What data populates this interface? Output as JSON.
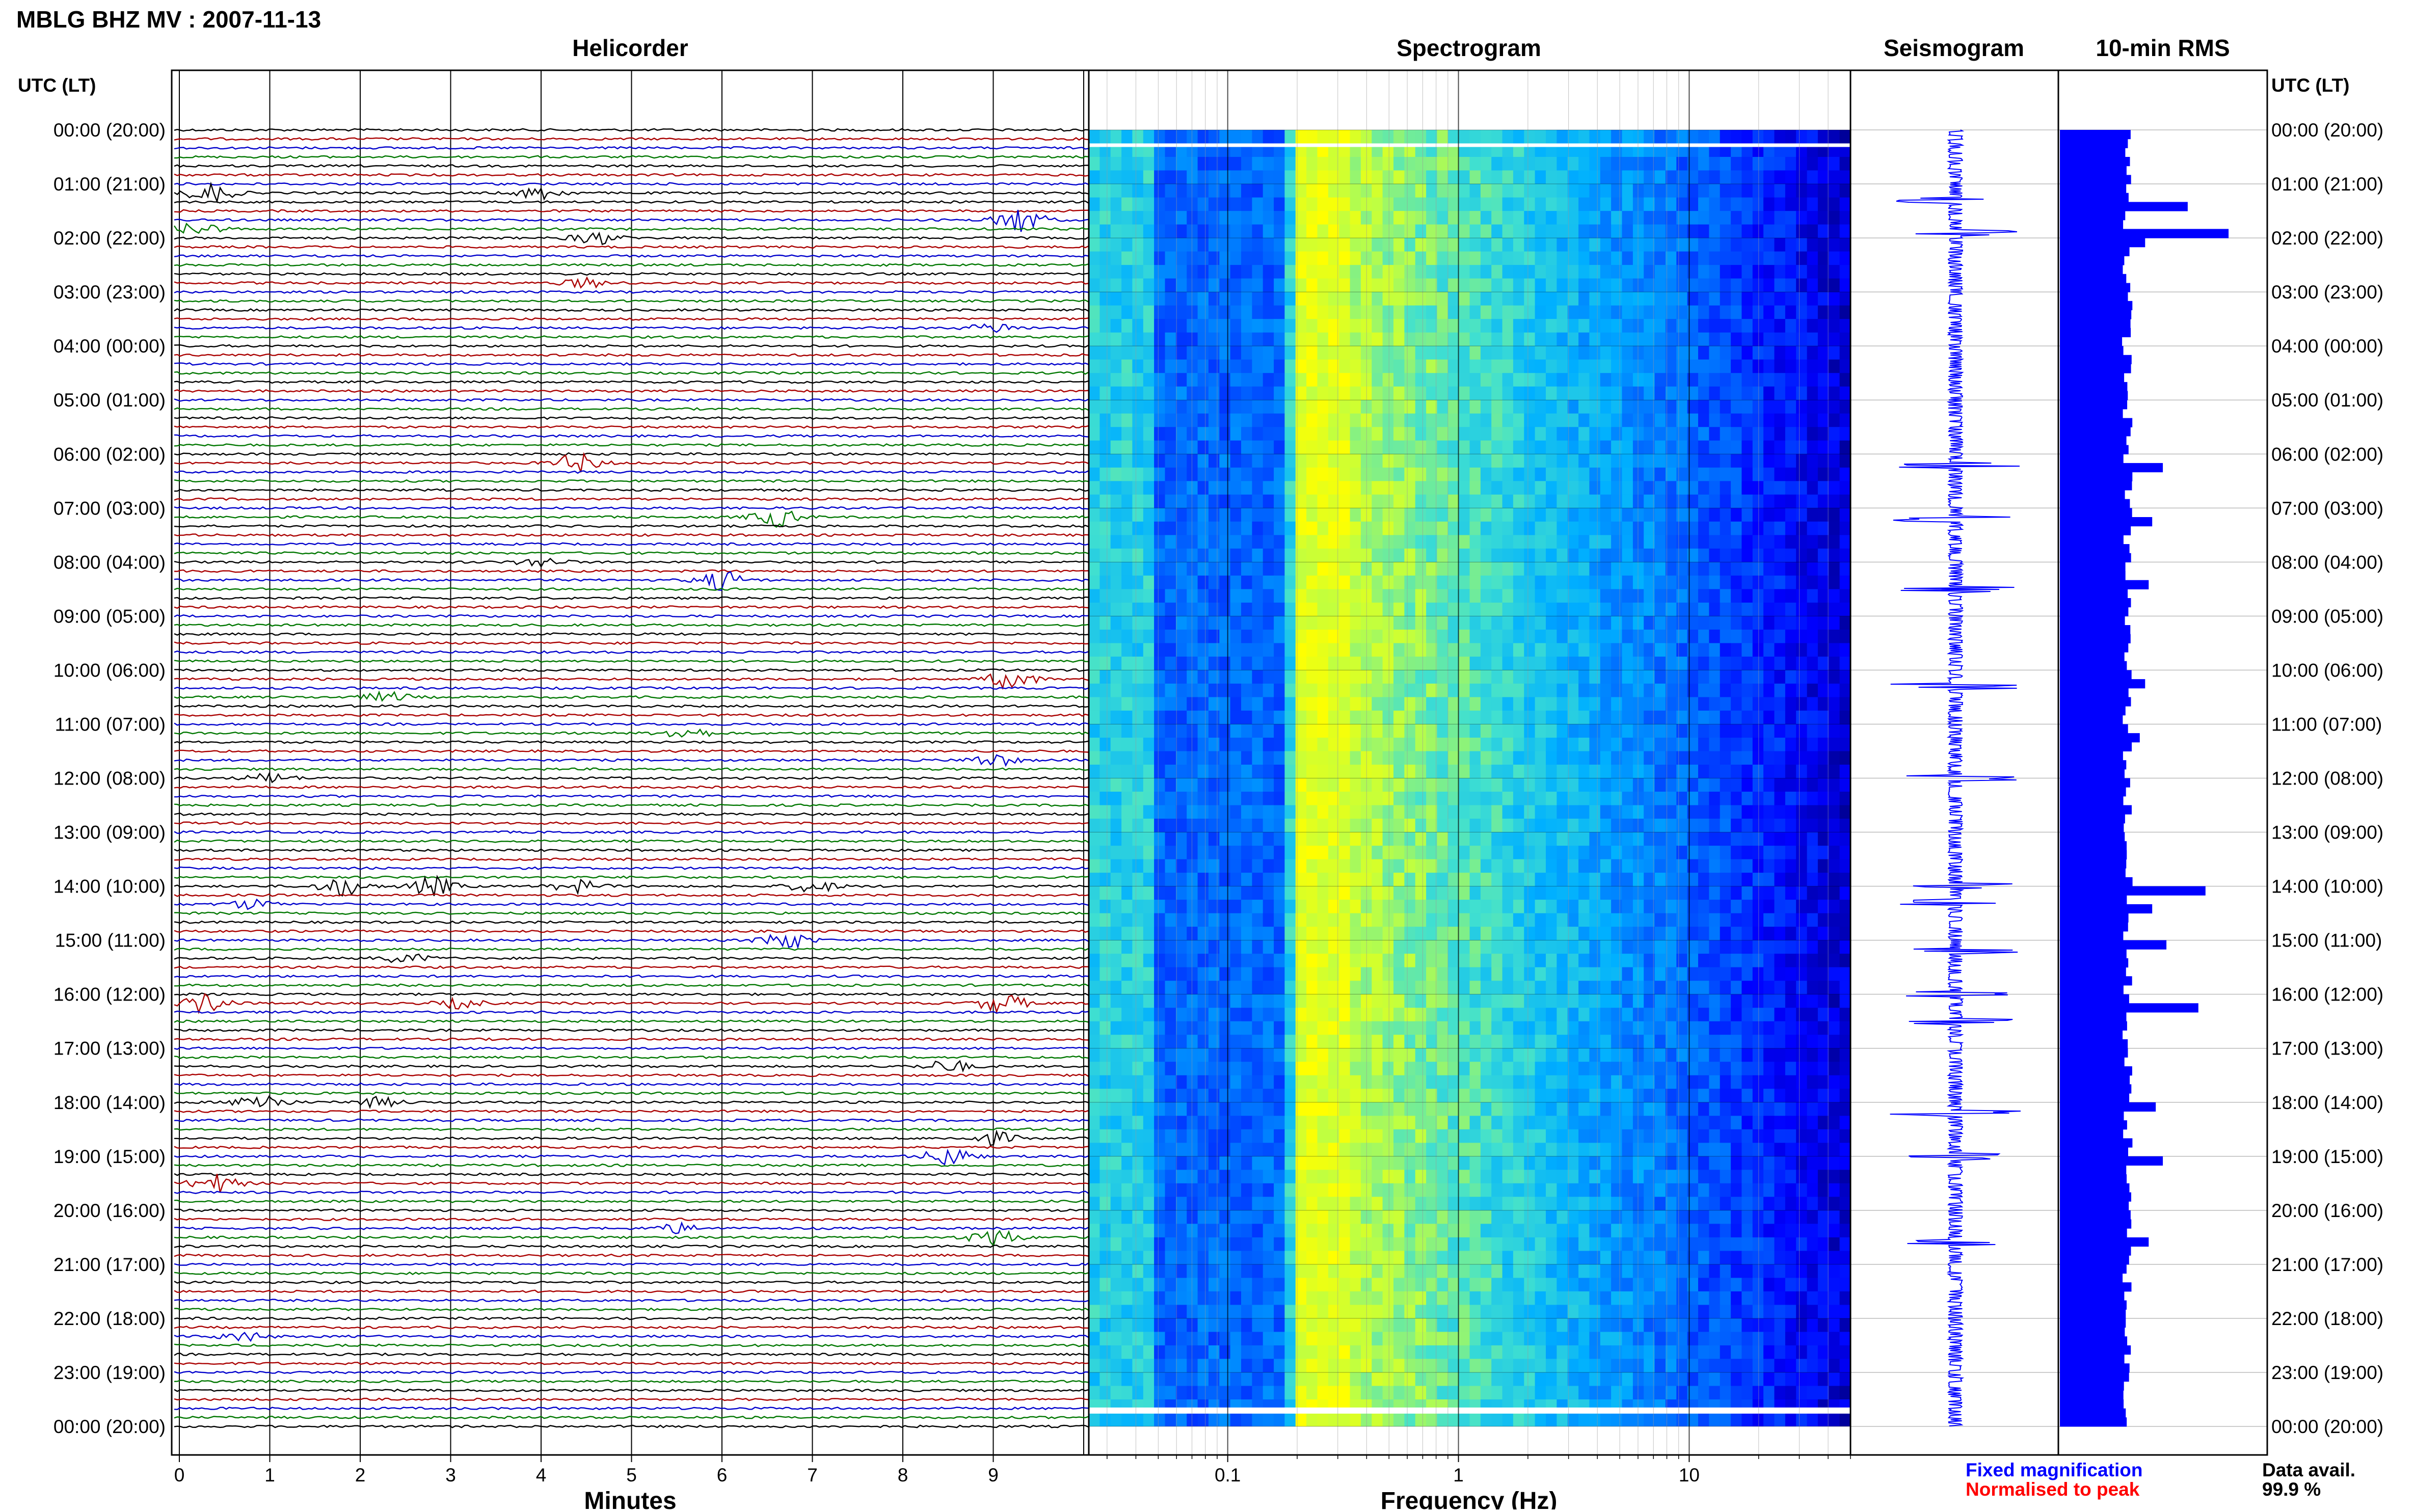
{
  "title": "MBLG BHZ MV : 2007-11-13",
  "headers": {
    "helicorder": "Helicorder",
    "spectrogram": "Spectrogram",
    "seismogram": "Seismogram",
    "rms": "10-min RMS"
  },
  "time_axis": {
    "caption_left": "UTC (LT)",
    "caption_right": "UTC (LT)",
    "labels": [
      "00:00 (20:00)",
      "01:00 (21:00)",
      "02:00 (22:00)",
      "03:00 (23:00)",
      "04:00 (00:00)",
      "05:00 (01:00)",
      "06:00 (02:00)",
      "07:00 (03:00)",
      "08:00 (04:00)",
      "09:00 (05:00)",
      "10:00 (06:00)",
      "11:00 (07:00)",
      "12:00 (08:00)",
      "13:00 (09:00)",
      "14:00 (10:00)",
      "15:00 (11:00)",
      "16:00 (12:00)",
      "17:00 (13:00)",
      "18:00 (14:00)",
      "19:00 (15:00)",
      "20:00 (16:00)",
      "21:00 (17:00)",
      "22:00 (18:00)",
      "23:00 (19:00)",
      "00:00 (20:00)"
    ]
  },
  "helicorder_axis": {
    "xlabel": "Minutes",
    "ticks": [
      "0",
      "1",
      "2",
      "3",
      "4",
      "5",
      "6",
      "7",
      "8",
      "9"
    ],
    "trace_colors": [
      "#000000",
      "#aa0000",
      "#0000cc",
      "#007700"
    ]
  },
  "spectrogram_axis": {
    "xlabel": "Frequency (Hz)",
    "ticks": [
      "0.1",
      "1",
      "10"
    ],
    "scale": "log",
    "xlim_hz": [
      0.025,
      50
    ]
  },
  "legend": {
    "fixed": "Fixed magnification",
    "fixed_color": "#0000ff",
    "normalised": "Normalised to peak",
    "normalised_color": "#ff0000",
    "avail_label": "Data avail.",
    "avail_value": "99.9 %"
  },
  "chart_data": [
    {
      "type": "line",
      "title": "Helicorder",
      "xlabel": "Minutes",
      "xlim": [
        0,
        10
      ],
      "rows_per_hour": 6,
      "rows": 144,
      "events": [
        {
          "hour": 1.1,
          "minute": 0.35,
          "amp": 3,
          "color": "#000000"
        },
        {
          "hour": 1.1,
          "minute": 4.0,
          "amp": 2,
          "color": "#000000"
        },
        {
          "hour": 1.6,
          "minute": 9.3,
          "amp": 4,
          "color": "#0000cc"
        },
        {
          "hour": 1.9,
          "minute": 0.2,
          "amp": 2,
          "color": "#007700"
        },
        {
          "hour": 2.0,
          "minute": 4.6,
          "amp": 2,
          "color": "#000000"
        },
        {
          "hour": 2.8,
          "minute": 4.5,
          "amp": 1.5,
          "color": "#aa0000"
        },
        {
          "hour": 3.6,
          "minute": 9.0,
          "amp": 1.5,
          "color": "#0000cc"
        },
        {
          "hour": 6.1,
          "minute": 4.4,
          "amp": 3,
          "color": "#aa0000"
        },
        {
          "hour": 7.1,
          "minute": 6.6,
          "amp": 3,
          "color": "#007700"
        },
        {
          "hour": 8.0,
          "minute": 4.0,
          "amp": 1.5,
          "color": "#000000"
        },
        {
          "hour": 8.3,
          "minute": 6.0,
          "amp": 3,
          "color": "#0000cc"
        },
        {
          "hour": 10.1,
          "minute": 9.2,
          "amp": 3,
          "color": "#aa0000"
        },
        {
          "hour": 10.5,
          "minute": 2.3,
          "amp": 1.5,
          "color": "#007700"
        },
        {
          "hour": 11.1,
          "minute": 5.6,
          "amp": 2,
          "color": "#007700"
        },
        {
          "hour": 11.7,
          "minute": 9.0,
          "amp": 2,
          "color": "#0000cc"
        },
        {
          "hour": 12.0,
          "minute": 1.0,
          "amp": 1.5,
          "color": "#000000"
        },
        {
          "hour": 14.0,
          "minute": 1.8,
          "amp": 3,
          "color": "#000000"
        },
        {
          "hour": 14.0,
          "minute": 2.8,
          "amp": 3,
          "color": "#000000"
        },
        {
          "hour": 14.0,
          "minute": 4.4,
          "amp": 2,
          "color": "#000000"
        },
        {
          "hour": 14.0,
          "minute": 7.0,
          "amp": 2,
          "color": "#aa0000"
        },
        {
          "hour": 14.3,
          "minute": 0.8,
          "amp": 1.5,
          "color": "#0000cc"
        },
        {
          "hour": 15.0,
          "minute": 6.7,
          "amp": 3,
          "color": "#0000cc"
        },
        {
          "hour": 15.3,
          "minute": 2.5,
          "amp": 1.5,
          "color": "#000000"
        },
        {
          "hour": 16.1,
          "minute": 0.3,
          "amp": 3,
          "color": "#aa0000"
        },
        {
          "hour": 16.1,
          "minute": 9.1,
          "amp": 3,
          "color": "#aa0000"
        },
        {
          "hour": 16.1,
          "minute": 3.1,
          "amp": 1.5,
          "color": "#aa0000"
        },
        {
          "hour": 17.3,
          "minute": 8.5,
          "amp": 2,
          "color": "#000000"
        },
        {
          "hour": 18.0,
          "minute": 0.9,
          "amp": 3,
          "color": "#000000"
        },
        {
          "hour": 18.0,
          "minute": 2.2,
          "amp": 1.5,
          "color": "#000000"
        },
        {
          "hour": 18.6,
          "minute": 9.0,
          "amp": 2,
          "color": "#000000"
        },
        {
          "hour": 19.0,
          "minute": 8.5,
          "amp": 3,
          "color": "#0000cc"
        },
        {
          "hour": 19.5,
          "minute": 0.4,
          "amp": 3,
          "color": "#aa0000"
        },
        {
          "hour": 20.5,
          "minute": 9.0,
          "amp": 3,
          "color": "#007700"
        },
        {
          "hour": 20.4,
          "minute": 5.5,
          "amp": 1.5,
          "color": "#0000cc"
        },
        {
          "hour": 22.3,
          "minute": 0.7,
          "amp": 1.5,
          "color": "#0000cc"
        }
      ]
    },
    {
      "type": "heatmap",
      "title": "Spectrogram",
      "xlabel": "Frequency (Hz)",
      "x_scale": "log",
      "xlim": [
        0.025,
        50
      ],
      "ylim_hours": [
        0,
        24
      ],
      "peak_band_hz": [
        0.2,
        0.3
      ],
      "colormap": [
        "#00008c",
        "#0000ff",
        "#0060ff",
        "#00b0ff",
        "#40e0d0",
        "#c0ff40",
        "#ffff00"
      ]
    },
    {
      "type": "line",
      "title": "Seismogram",
      "ylim_hours": [
        0,
        24
      ],
      "spikes_hours": [
        1.3,
        1.9,
        6.2,
        7.2,
        8.5,
        10.3,
        12.0,
        14.0,
        14.3,
        15.2,
        16.0,
        16.5,
        18.2,
        19.0,
        20.6
      ]
    },
    {
      "type": "bar",
      "title": "10-min RMS",
      "orientation": "horizontal",
      "ylim_hours": [
        0,
        24
      ],
      "bins_per_hour": 6,
      "base": 0.38,
      "peaks": [
        {
          "hour": 1.33,
          "value": 0.72
        },
        {
          "hour": 1.83,
          "value": 0.95
        },
        {
          "hour": 2.0,
          "value": 0.48
        },
        {
          "hour": 6.17,
          "value": 0.58
        },
        {
          "hour": 7.17,
          "value": 0.52
        },
        {
          "hour": 8.33,
          "value": 0.5
        },
        {
          "hour": 10.17,
          "value": 0.48
        },
        {
          "hour": 11.17,
          "value": 0.45
        },
        {
          "hour": 14.0,
          "value": 0.82
        },
        {
          "hour": 14.33,
          "value": 0.52
        },
        {
          "hour": 15.0,
          "value": 0.6
        },
        {
          "hour": 16.17,
          "value": 0.78
        },
        {
          "hour": 18.0,
          "value": 0.54
        },
        {
          "hour": 19.0,
          "value": 0.58
        },
        {
          "hour": 20.5,
          "value": 0.5
        }
      ]
    }
  ]
}
